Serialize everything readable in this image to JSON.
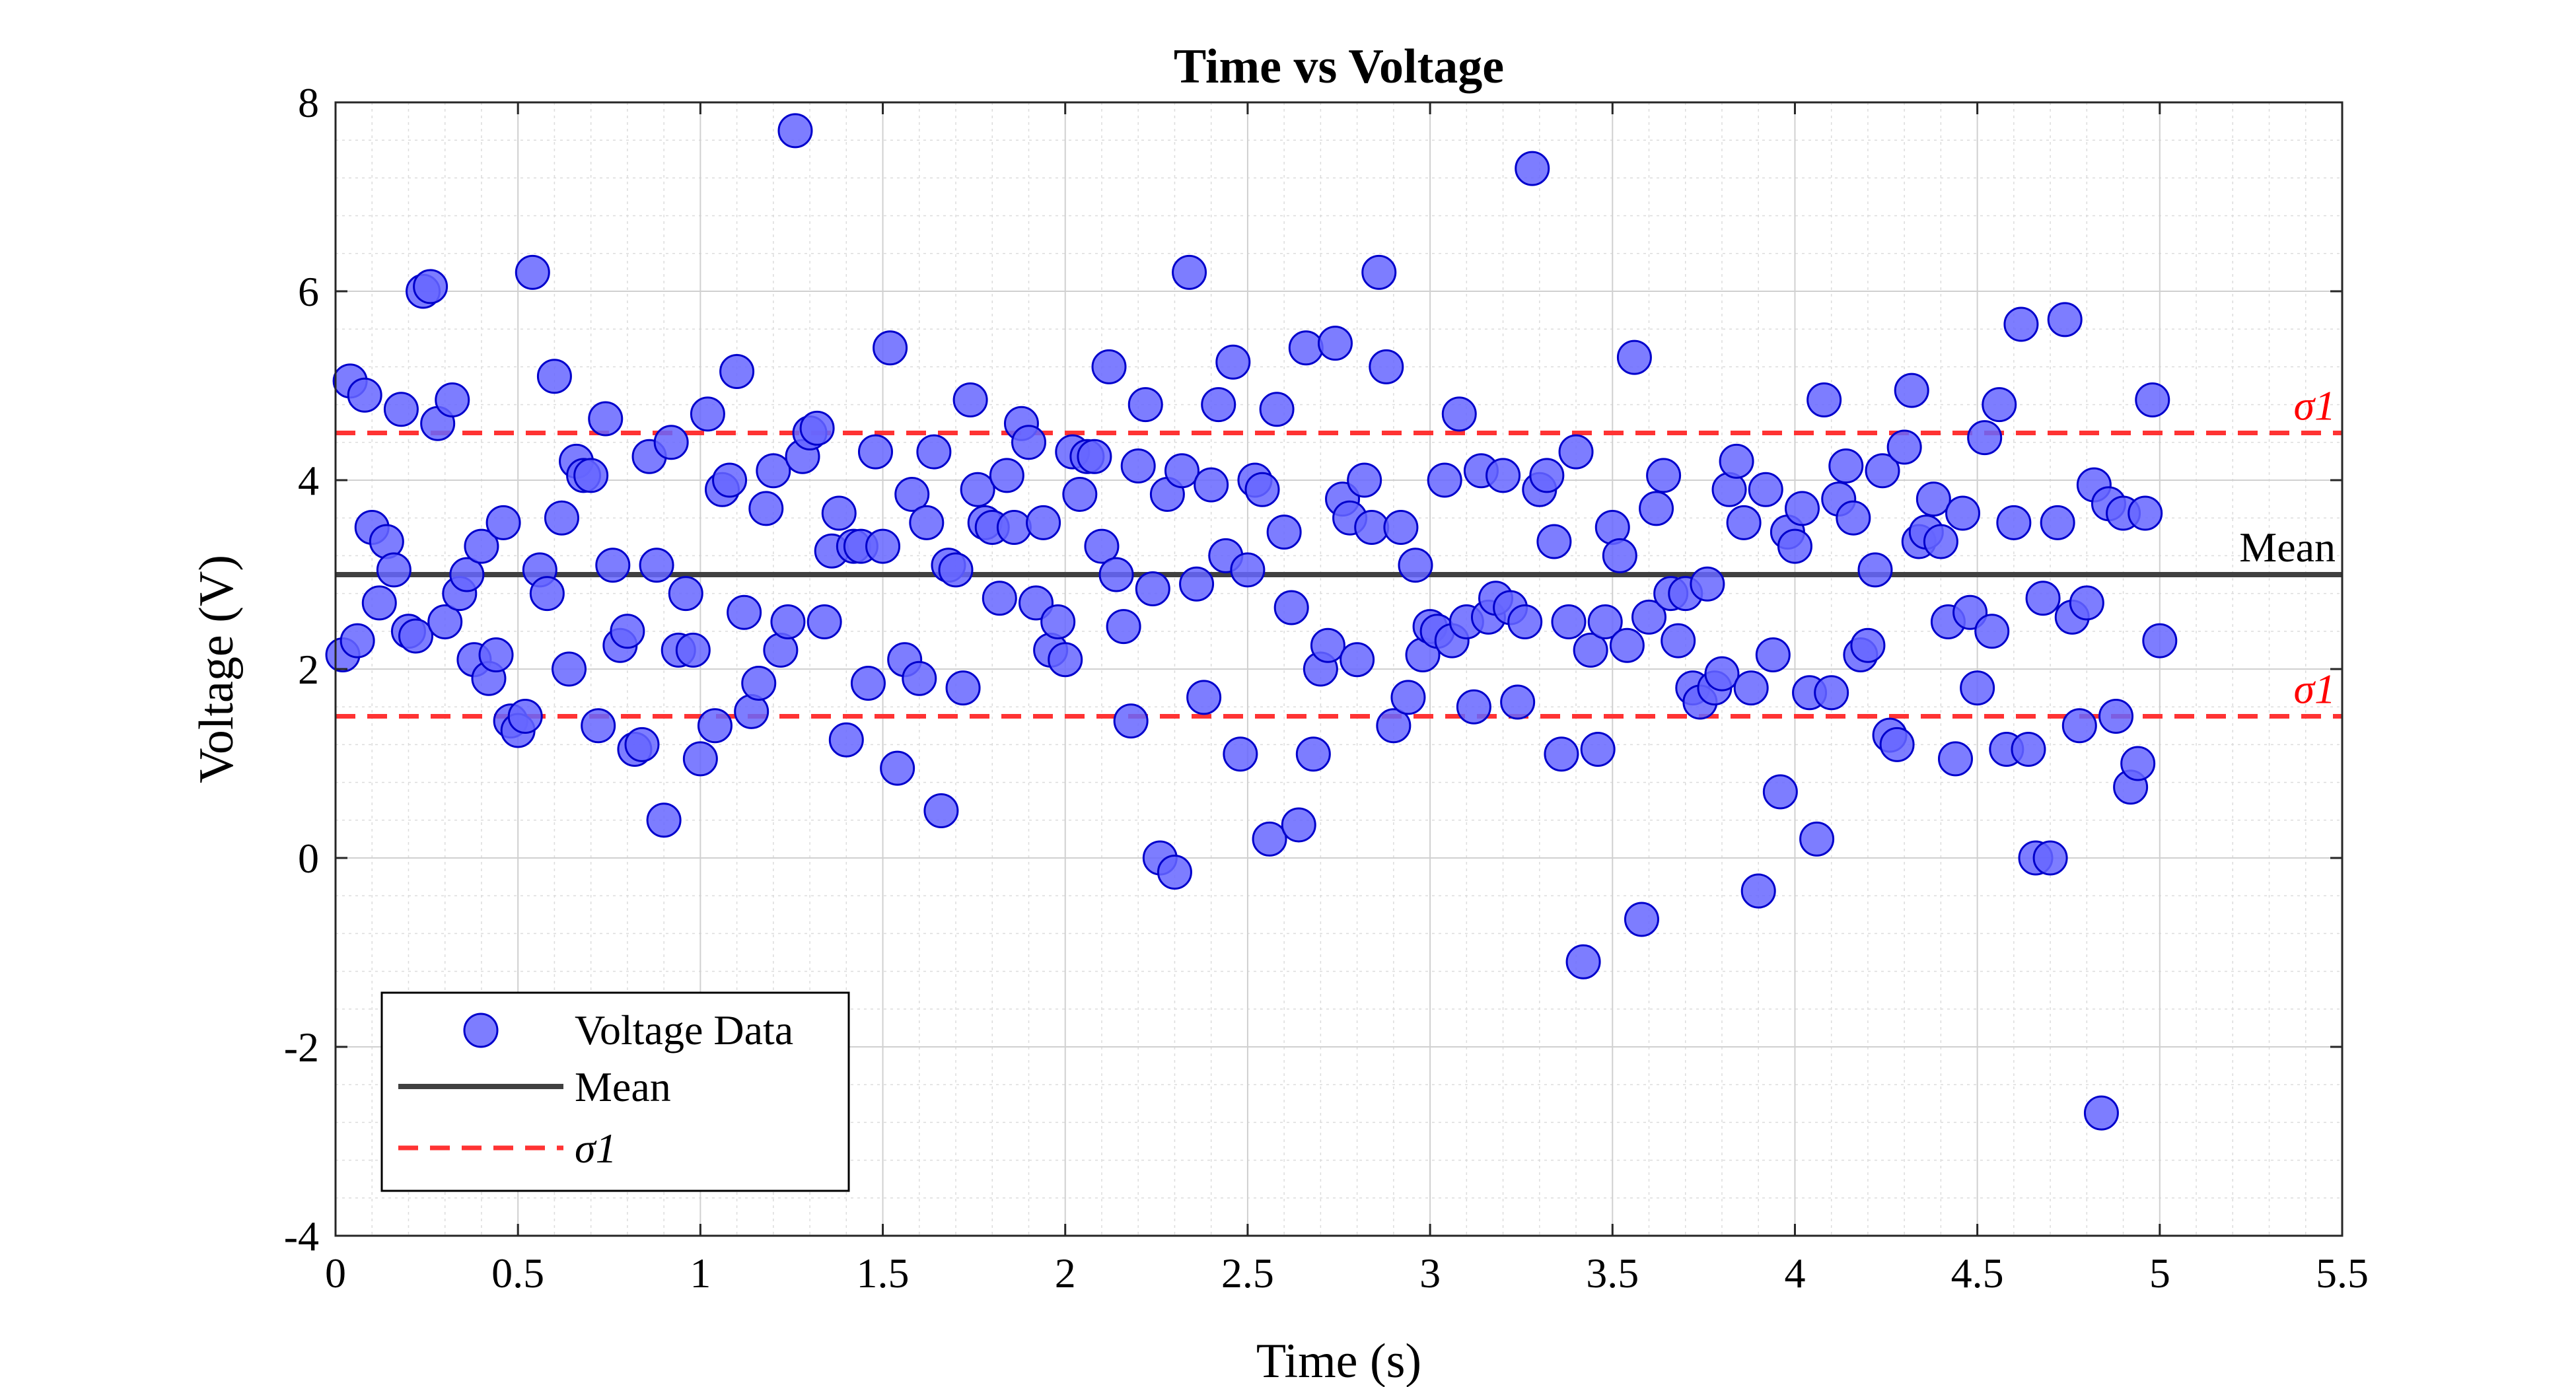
{
  "chart_data": {
    "type": "scatter",
    "title": "Time vs Voltage",
    "xlabel": "Time (s)",
    "ylabel": "Voltage (V)",
    "xlim": [
      0,
      5.5
    ],
    "ylim": [
      -4,
      8
    ],
    "xticks": [
      0,
      0.5,
      1,
      1.5,
      2,
      2.5,
      3,
      3.5,
      4,
      4.5,
      5,
      5.5
    ],
    "xtick_labels": [
      "0",
      "0.5",
      "1",
      "1.5",
      "2",
      "2.5",
      "3",
      "3.5",
      "4",
      "4.5",
      "5",
      "5.5"
    ],
    "yticks": [
      -4,
      -2,
      0,
      2,
      4,
      6,
      8
    ],
    "ytick_labels": [
      "-4",
      "-2",
      "0",
      "2",
      "4",
      "6",
      "8"
    ],
    "grid": true,
    "minor_grid": true,
    "legend_placement": "bottom-left",
    "series": [
      {
        "name": "Voltage Data",
        "kind": "scatter",
        "color": "#6666ff",
        "edge_color": "#0000cc",
        "x": [
          0.02,
          0.04,
          0.06,
          0.08,
          0.1,
          0.12,
          0.14,
          0.16,
          0.18,
          0.2,
          0.22,
          0.24,
          0.26,
          0.28,
          0.3,
          0.32,
          0.34,
          0.36,
          0.38,
          0.4,
          0.42,
          0.44,
          0.46,
          0.48,
          0.5,
          0.52,
          0.54,
          0.56,
          0.58,
          0.6,
          0.62,
          0.64,
          0.66,
          0.68,
          0.7,
          0.72,
          0.74,
          0.76,
          0.78,
          0.8,
          0.82,
          0.84,
          0.86,
          0.88,
          0.9,
          0.92,
          0.94,
          0.96,
          0.98,
          1.0,
          1.02,
          1.04,
          1.06,
          1.08,
          1.1,
          1.12,
          1.14,
          1.16,
          1.18,
          1.2,
          1.22,
          1.24,
          1.26,
          1.28,
          1.3,
          1.32,
          1.34,
          1.36,
          1.38,
          1.4,
          1.42,
          1.44,
          1.46,
          1.48,
          1.5,
          1.52,
          1.54,
          1.56,
          1.58,
          1.6,
          1.62,
          1.64,
          1.66,
          1.68,
          1.7,
          1.72,
          1.74,
          1.76,
          1.78,
          1.8,
          1.82,
          1.84,
          1.86,
          1.88,
          1.9,
          1.92,
          1.94,
          1.96,
          1.98,
          2.0,
          2.02,
          2.04,
          2.06,
          2.08,
          2.1,
          2.12,
          2.14,
          2.16,
          2.18,
          2.2,
          2.22,
          2.24,
          2.26,
          2.28,
          2.3,
          2.32,
          2.34,
          2.36,
          2.38,
          2.4,
          2.42,
          2.44,
          2.46,
          2.48,
          2.5,
          2.52,
          2.54,
          2.56,
          2.58,
          2.6,
          2.62,
          2.64,
          2.66,
          2.68,
          2.7,
          2.72,
          2.74,
          2.76,
          2.78,
          2.8,
          2.82,
          2.84,
          2.86,
          2.88,
          2.9,
          2.92,
          2.94,
          2.96,
          2.98,
          3.0,
          3.02,
          3.04,
          3.06,
          3.08,
          3.1,
          3.12,
          3.14,
          3.16,
          3.18,
          3.2,
          3.22,
          3.24,
          3.26,
          3.28,
          3.3,
          3.32,
          3.34,
          3.36,
          3.38,
          3.4,
          3.42,
          3.44,
          3.46,
          3.48,
          3.5,
          3.52,
          3.54,
          3.56,
          3.58,
          3.6,
          3.62,
          3.64,
          3.66,
          3.68,
          3.7,
          3.72,
          3.74,
          3.76,
          3.78,
          3.8,
          3.82,
          3.84,
          3.86,
          3.88,
          3.9,
          3.92,
          3.94,
          3.96,
          3.98,
          4.0,
          4.02,
          4.04,
          4.06,
          4.08,
          4.1,
          4.12,
          4.14,
          4.16,
          4.18,
          4.2,
          4.22,
          4.24,
          4.26,
          4.28,
          4.3,
          4.32,
          4.34,
          4.36,
          4.38,
          4.4,
          4.42,
          4.44,
          4.46,
          4.48,
          4.5,
          4.52,
          4.54,
          4.56,
          4.58,
          4.6,
          4.62,
          4.64,
          4.66,
          4.68,
          4.7,
          4.72,
          4.74,
          4.76,
          4.78,
          4.8,
          4.82,
          4.84,
          4.86,
          4.88,
          4.9,
          4.92,
          4.94,
          4.96,
          4.98,
          5.0
        ],
        "y": [
          2.15,
          5.05,
          2.3,
          4.9,
          3.5,
          2.7,
          3.35,
          3.05,
          4.75,
          2.4,
          2.35,
          6.0,
          6.05,
          4.6,
          2.5,
          4.85,
          2.8,
          3.0,
          2.1,
          3.3,
          1.9,
          2.15,
          3.55,
          1.45,
          1.35,
          1.5,
          6.2,
          3.05,
          2.8,
          5.1,
          3.6,
          2.0,
          4.2,
          4.05,
          4.05,
          1.4,
          4.65,
          3.1,
          2.25,
          2.4,
          1.15,
          1.2,
          4.25,
          3.1,
          0.4,
          4.4,
          2.2,
          2.8,
          2.2,
          1.05,
          4.7,
          1.4,
          3.9,
          4.0,
          5.15,
          2.6,
          1.55,
          1.85,
          3.7,
          4.1,
          2.2,
          2.5,
          7.7,
          4.25,
          4.5,
          4.55,
          2.5,
          3.25,
          3.65,
          1.25,
          3.3,
          3.3,
          1.85,
          4.3,
          3.3,
          5.4,
          0.95,
          2.1,
          3.85,
          1.9,
          3.55,
          4.3,
          0.5,
          3.1,
          3.05,
          1.8,
          4.85,
          3.9,
          3.55,
          3.5,
          2.75,
          4.05,
          3.5,
          4.6,
          4.4,
          2.7,
          3.55,
          2.2,
          2.5,
          2.1,
          4.3,
          3.85,
          4.25,
          4.25,
          3.3,
          5.2,
          3.0,
          2.45,
          1.45,
          4.15,
          4.8,
          2.85,
          0.0,
          3.85,
          -0.15,
          4.1,
          6.2,
          2.9,
          1.7,
          3.95,
          4.8,
          3.2,
          5.25,
          1.1,
          3.05,
          4.0,
          3.9,
          0.2,
          4.75,
          3.45,
          2.65,
          0.35,
          5.4,
          1.1,
          2.0,
          2.25,
          5.45,
          3.8,
          3.6,
          2.1,
          4.0,
          3.5,
          6.2,
          5.2,
          1.4,
          3.5,
          1.7,
          3.1,
          2.15,
          2.45,
          2.4,
          4.0,
          2.3,
          4.7,
          2.5,
          1.6,
          4.1,
          2.55,
          2.75,
          4.05,
          2.65,
          1.65,
          2.5,
          7.3,
          3.9,
          4.05,
          3.35,
          1.1,
          2.5,
          4.3,
          -1.1,
          2.2,
          1.15,
          2.5,
          3.5,
          3.2,
          2.25,
          5.3,
          -0.65,
          2.55,
          3.7,
          4.05,
          2.8,
          2.3,
          2.8,
          1.8,
          1.65,
          2.9,
          1.8,
          1.95,
          3.9,
          4.2,
          3.55,
          1.8,
          -0.35,
          3.9,
          2.15,
          0.7,
          3.45,
          3.3,
          3.7,
          1.75,
          0.2,
          4.85,
          1.75,
          3.8,
          4.15,
          3.6,
          2.15,
          2.25,
          3.05,
          4.1,
          1.3,
          1.2,
          4.35,
          4.95,
          3.35,
          3.45,
          3.8,
          3.35,
          2.5,
          1.05,
          3.65,
          2.6,
          1.8,
          4.45,
          2.4,
          4.8,
          1.15,
          3.55,
          5.65,
          1.15,
          0.0,
          2.75,
          0.0,
          3.55,
          5.7,
          2.55,
          1.4,
          2.7,
          3.95,
          -2.7,
          3.75,
          1.5,
          3.65,
          0.75,
          1.0,
          3.65,
          4.85,
          2.3
        ]
      },
      {
        "name": "Mean",
        "kind": "hline",
        "color": "#404040",
        "value": 3.0
      },
      {
        "name": "σ1",
        "kind": "hline",
        "color": "#ff3333",
        "dashed": true,
        "values": [
          4.5,
          1.5
        ]
      }
    ],
    "annotations": [
      {
        "text": "σ1",
        "y": 4.5,
        "color": "#ff0000"
      },
      {
        "text": "Mean",
        "y": 3.0,
        "color": "#000000"
      },
      {
        "text": "σ1",
        "y": 1.5,
        "color": "#ff0000"
      }
    ],
    "legend": [
      {
        "label": "Voltage Data",
        "marker": "circle"
      },
      {
        "label": "Mean",
        "marker": "solid-line"
      },
      {
        "label": "σ1",
        "marker": "dashed-line"
      }
    ]
  }
}
